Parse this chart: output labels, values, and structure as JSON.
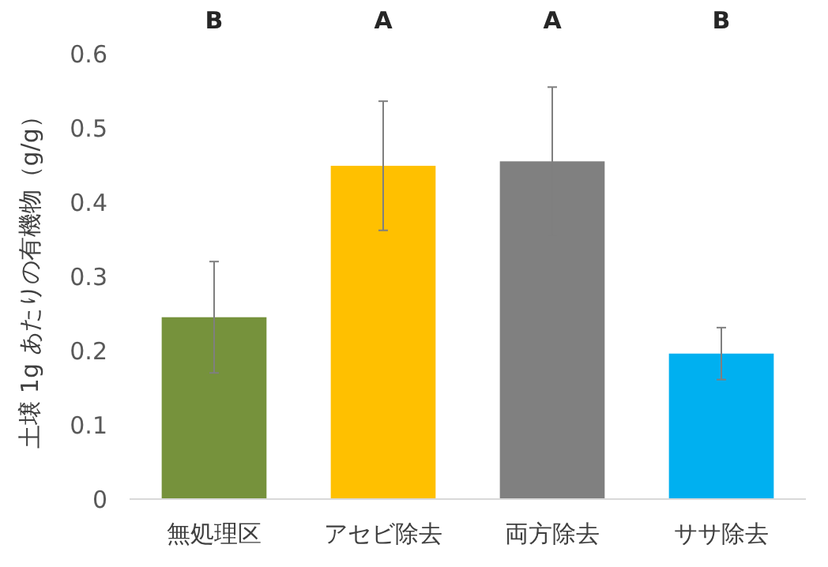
{
  "chart_data": {
    "type": "bar",
    "ylabel": "土壌 1g あたりの有機物（g/g）",
    "categories": [
      "無処理区",
      "アセビ除去",
      "両方除去",
      "ササ除去"
    ],
    "values": [
      0.245,
      0.449,
      0.455,
      0.196
    ],
    "colors": [
      "#76923c",
      "#ffc000",
      "#808080",
      "#00b0f0"
    ],
    "errors": [
      0.075,
      0.087,
      0.1,
      0.035
    ],
    "ylim": [
      0,
      0.6
    ],
    "yticks": [
      0,
      0.1,
      0.2,
      0.3,
      0.4,
      0.5,
      0.6
    ],
    "grid": false,
    "annotations": [
      "B",
      "A",
      "A",
      "B"
    ]
  }
}
